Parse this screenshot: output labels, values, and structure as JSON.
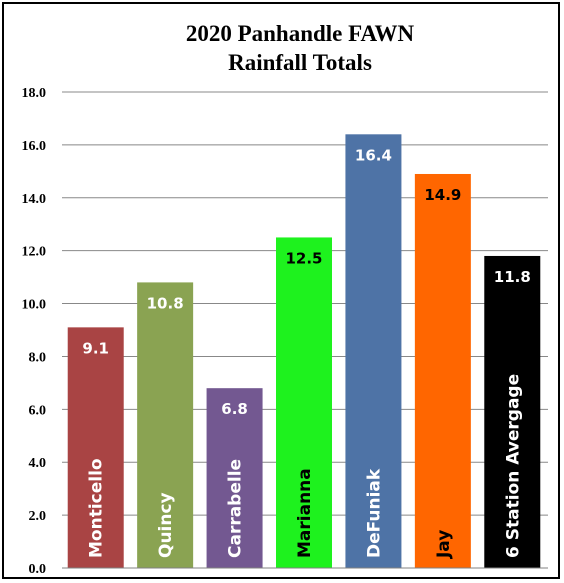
{
  "chart_data": {
    "type": "bar",
    "title": "2020 Panhandle FAWN",
    "subtitle": "Rainfall Totals",
    "categories": [
      "Monticello",
      "Quincy",
      "Carrabelle",
      "Marianna",
      "DeFuniak",
      "Jay",
      "6 Station Avergage"
    ],
    "values": [
      9.1,
      10.8,
      6.8,
      12.5,
      16.4,
      14.9,
      11.8
    ],
    "value_labels": [
      "9.1",
      "10.8",
      "6.8",
      "12.5",
      "16.4",
      "14.9",
      "11.8"
    ],
    "bar_colors": [
      "#a94444",
      "#8aa352",
      "#735891",
      "#1ef21e",
      "#4e73a6",
      "#ff6600",
      "#000000"
    ],
    "label_colors": [
      "#ffffff",
      "#ffffff",
      "#ffffff",
      "#000000",
      "#ffffff",
      "#000000",
      "#ffffff"
    ],
    "ylim": [
      0,
      18
    ],
    "yticks": [
      "0.0",
      "2.0",
      "4.0",
      "6.0",
      "8.0",
      "10.0",
      "12.0",
      "14.0",
      "16.0",
      "18.0"
    ],
    "grid": true,
    "legend": "none"
  }
}
